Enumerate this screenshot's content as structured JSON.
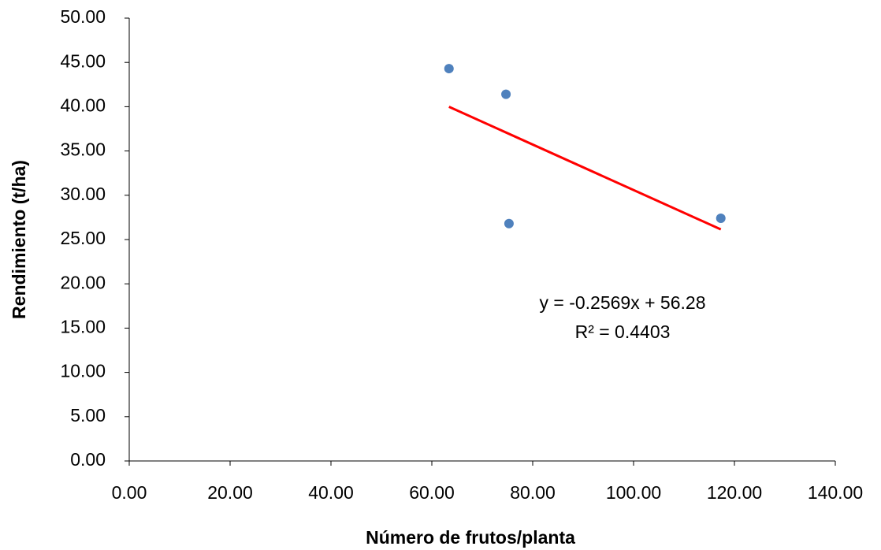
{
  "chart_data": {
    "type": "scatter",
    "x_label": "Número de frutos/planta",
    "y_label": "Rendimiento (t/ha)",
    "series": [
      {
        "color": "#4f81bd",
        "x": [
          63.4,
          74.7,
          75.3,
          117.3
        ],
        "values": [
          44.3,
          41.4,
          26.8,
          27.4
        ]
      }
    ],
    "xlim": [
      0,
      140
    ],
    "xticks": [
      {
        "value": 0,
        "label": "0.00"
      },
      {
        "value": 20,
        "label": "20.00"
      },
      {
        "value": 40,
        "label": "40.00"
      },
      {
        "value": 60,
        "label": "60.00"
      },
      {
        "value": 80,
        "label": "80.00"
      },
      {
        "value": 100,
        "label": "100.00"
      },
      {
        "value": 120,
        "label": "120.00"
      },
      {
        "value": 140,
        "label": "140.00"
      }
    ],
    "ylim": [
      0,
      50
    ],
    "yticks": [
      {
        "value": 0,
        "label": "0.00"
      },
      {
        "value": 5,
        "label": "5.00"
      },
      {
        "value": 10,
        "label": "10.00"
      },
      {
        "value": 15,
        "label": "15.00"
      },
      {
        "value": 20,
        "label": "20.00"
      },
      {
        "value": 25,
        "label": "25.00"
      },
      {
        "value": 30,
        "label": "30.00"
      },
      {
        "value": 35,
        "label": "35.00"
      },
      {
        "value": 40,
        "label": "40.00"
      },
      {
        "value": 45,
        "label": "45.00"
      },
      {
        "value": 50,
        "label": "50.00"
      }
    ],
    "trendline": {
      "slope": -0.2569,
      "intercept": 56.28,
      "color": "#ff0000",
      "equation": "y = -0.2569x + 56.28",
      "r_squared": "R² = 0.4403"
    }
  }
}
